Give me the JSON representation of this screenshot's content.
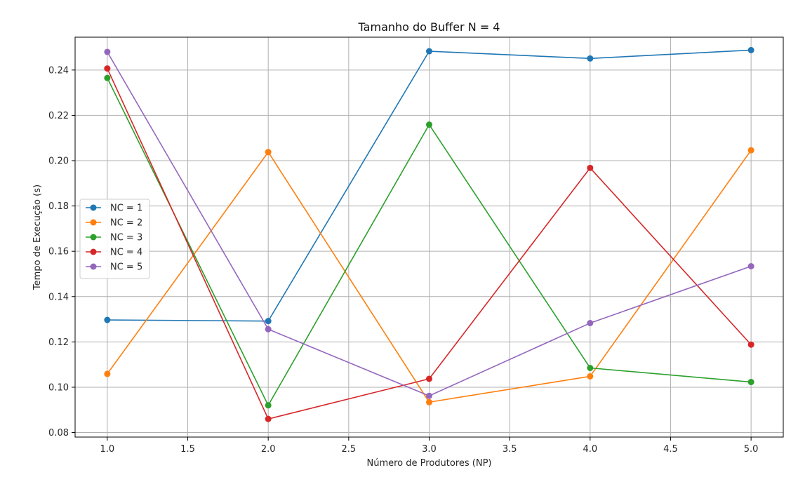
{
  "chart_data": {
    "type": "line",
    "title": "Tamanho do Buffer N = 4",
    "xlabel": "Número de Produtores (NP)",
    "ylabel": "Tempo de Execução (s)",
    "x": [
      1.0,
      2.0,
      3.0,
      4.0,
      5.0
    ],
    "xlim": [
      0.8,
      5.2
    ],
    "ylim": [
      0.078,
      0.2545
    ],
    "xticks": [
      "1.0",
      "1.5",
      "2.0",
      "2.5",
      "3.0",
      "3.5",
      "4.0",
      "4.5",
      "5.0"
    ],
    "yticks": [
      "0.08",
      "0.10",
      "0.12",
      "0.14",
      "0.16",
      "0.18",
      "0.20",
      "0.22",
      "0.24"
    ],
    "grid": true,
    "legend_position": "center-left",
    "series": [
      {
        "name": "NC = 1",
        "color": "#1f77b4",
        "values": [
          0.1297,
          0.1292,
          0.2483,
          0.2451,
          0.2488
        ]
      },
      {
        "name": "NC = 2",
        "color": "#ff7f0e",
        "values": [
          0.1059,
          0.2038,
          0.0934,
          0.1048,
          0.2046
        ]
      },
      {
        "name": "NC = 3",
        "color": "#2ca02c",
        "values": [
          0.2365,
          0.092,
          0.2159,
          0.1085,
          0.1023
        ]
      },
      {
        "name": "NC = 4",
        "color": "#d62728",
        "values": [
          0.2407,
          0.086,
          0.1037,
          0.1968,
          0.1188
        ]
      },
      {
        "name": "NC = 5",
        "color": "#9467bd",
        "values": [
          0.248,
          0.1256,
          0.0962,
          0.1283,
          0.1534
        ]
      }
    ]
  }
}
